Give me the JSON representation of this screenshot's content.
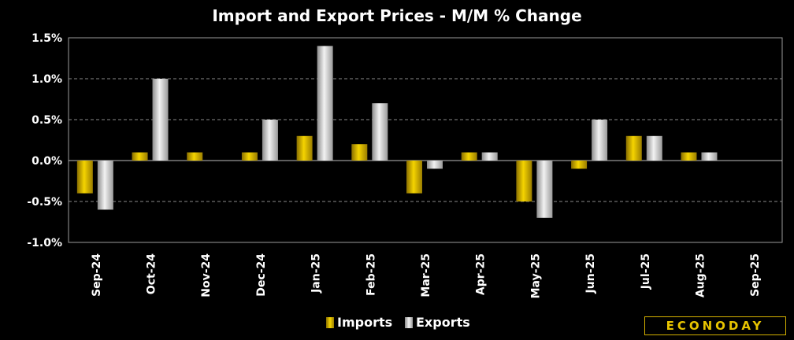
{
  "chart_data": {
    "type": "bar",
    "title": "Import and Export Prices - M/M % Change",
    "categories": [
      "Sep-24",
      "Oct-24",
      "Nov-24",
      "Dec-24",
      "Jan-25",
      "Feb-25",
      "Mar-25",
      "Apr-25",
      "May-25",
      "Jun-25",
      "Jul-25",
      "Aug-25",
      "Sep-25"
    ],
    "series": [
      {
        "name": "Imports",
        "values": [
          -0.4,
          0.1,
          0.1,
          0.1,
          0.3,
          0.2,
          -0.4,
          0.1,
          -0.5,
          -0.1,
          0.3,
          0.1,
          null
        ],
        "color": "#e8c400"
      },
      {
        "name": "Exports",
        "values": [
          -0.6,
          1.0,
          0.0,
          0.5,
          1.4,
          0.7,
          -0.1,
          0.1,
          -0.7,
          0.5,
          0.3,
          0.1,
          null
        ],
        "color": "#d0d0d0"
      }
    ],
    "ylim": [
      -1.0,
      1.5
    ],
    "yticks": [
      "1.5%",
      "1.0%",
      "0.5%",
      "0.0%",
      "-0.5%",
      "-1.0%"
    ],
    "ytick_values": [
      1.5,
      1.0,
      0.5,
      0.0,
      -0.5,
      -1.0
    ],
    "grid": true,
    "legend_position": "bottom",
    "xlabel": "",
    "ylabel": ""
  },
  "logo_text": "ECONODAY"
}
